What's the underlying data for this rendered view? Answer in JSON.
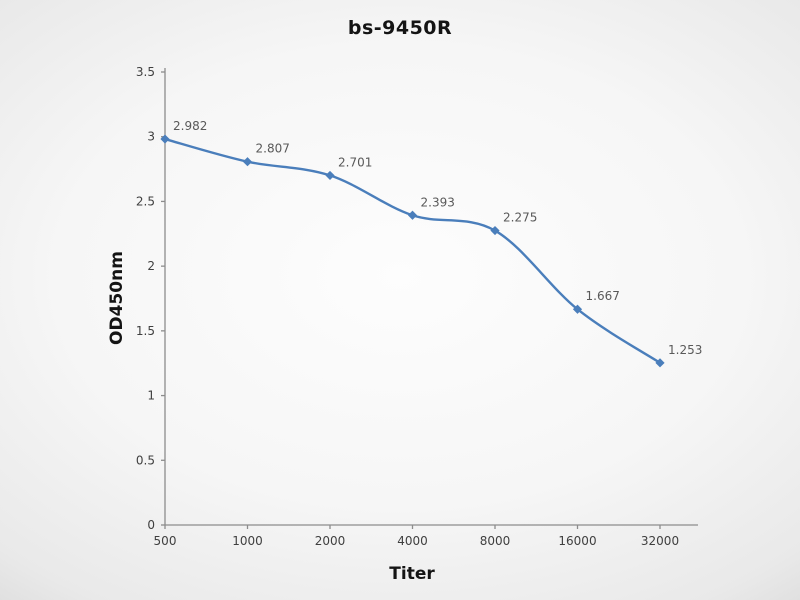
{
  "chart_data": {
    "type": "line",
    "title": "bs-9450R",
    "xlabel": "Titer",
    "ylabel": "OD450nm",
    "categories": [
      "500",
      "1000",
      "2000",
      "4000",
      "8000",
      "16000",
      "32000"
    ],
    "values": [
      2.982,
      2.807,
      2.701,
      2.393,
      2.275,
      1.667,
      1.253
    ],
    "data_labels": [
      "2.982",
      "2.807",
      "2.701",
      "2.393",
      "2.275",
      "1.667",
      "1.253"
    ],
    "y_ticks": [
      0,
      0.5,
      1,
      1.5,
      2,
      2.5,
      3,
      3.5
    ],
    "y_tick_labels": [
      "0",
      "0.5",
      "1",
      "1.5",
      "2",
      "2.5",
      "3",
      "3.5"
    ],
    "ylim": [
      0,
      3.5
    ],
    "grid": false,
    "legend": "none",
    "line_color": "#4a7ebb",
    "marker": "diamond",
    "axis_color": "#8c8c8c",
    "tick_text_color": "#3f3f3f",
    "data_label_color": "#595959"
  }
}
